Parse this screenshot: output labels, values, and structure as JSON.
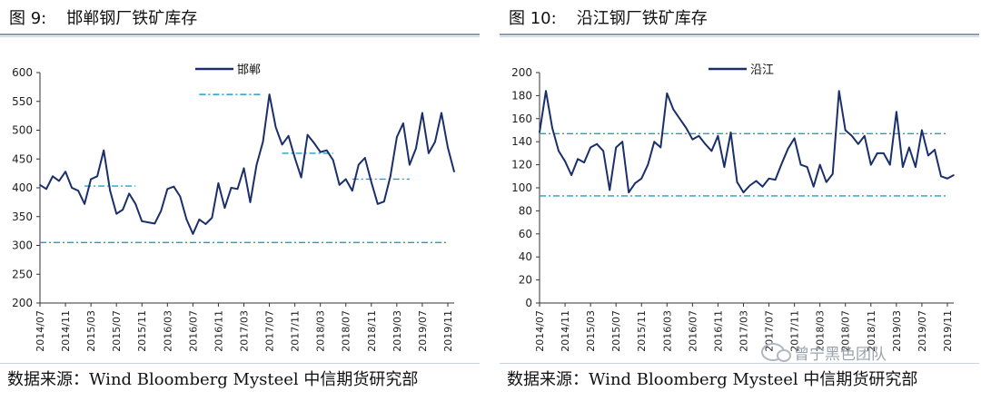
{
  "figures": [
    {
      "number": "图 9:",
      "title": "邯郸钢厂铁矿库存",
      "source": "数据来源：Wind Bloomberg Mysteel 中信期货研究部"
    },
    {
      "number": "图 10:",
      "title": "沿江钢厂铁矿库存",
      "source": "数据来源：Wind Bloomberg Mysteel 中信期货研究部"
    }
  ],
  "watermark": "曾宁黑色团队",
  "colors": {
    "line": "#1a2f6b",
    "reference": "#1aa3c9",
    "axis": "#333333"
  },
  "chart_data": [
    {
      "type": "line",
      "ylim": [
        200,
        600
      ],
      "yticks": [
        200,
        250,
        300,
        350,
        400,
        450,
        500,
        550,
        600
      ],
      "xticks": [
        "2014/07",
        "2014/11",
        "2015/03",
        "2015/07",
        "2015/11",
        "2016/03",
        "2016/07",
        "2016/11",
        "2017/03",
        "2017/07",
        "2017/11",
        "2018/03",
        "2018/07",
        "2018/11",
        "2019/03",
        "2019/07",
        "2019/11"
      ],
      "x_range": [
        "2014/07",
        "2019/12"
      ],
      "series": [
        {
          "name": "邯郸",
          "points": [
            [
              "2014/07",
              405
            ],
            [
              "2014/08",
              398
            ],
            [
              "2014/09",
              420
            ],
            [
              "2014/10",
              412
            ],
            [
              "2014/11",
              428
            ],
            [
              "2014/12",
              400
            ],
            [
              "2015/01",
              395
            ],
            [
              "2015/02",
              372
            ],
            [
              "2015/03",
              415
            ],
            [
              "2015/04",
              420
            ],
            [
              "2015/05",
              465
            ],
            [
              "2015/06",
              395
            ],
            [
              "2015/07",
              355
            ],
            [
              "2015/08",
              362
            ],
            [
              "2015/09",
              390
            ],
            [
              "2015/10",
              372
            ],
            [
              "2015/11",
              342
            ],
            [
              "2015/12",
              340
            ],
            [
              "2016/01",
              338
            ],
            [
              "2016/02",
              360
            ],
            [
              "2016/03",
              398
            ],
            [
              "2016/04",
              402
            ],
            [
              "2016/05",
              385
            ],
            [
              "2016/06",
              345
            ],
            [
              "2016/07",
              320
            ],
            [
              "2016/08",
              345
            ],
            [
              "2016/09",
              337
            ],
            [
              "2016/10",
              348
            ],
            [
              "2016/11",
              408
            ],
            [
              "2016/12",
              365
            ],
            [
              "2017/01",
              400
            ],
            [
              "2017/02",
              398
            ],
            [
              "2017/03",
              434
            ],
            [
              "2017/04",
              375
            ],
            [
              "2017/05",
              440
            ],
            [
              "2017/06",
              480
            ],
            [
              "2017/07",
              562
            ],
            [
              "2017/08",
              505
            ],
            [
              "2017/09",
              475
            ],
            [
              "2017/10",
              490
            ],
            [
              "2017/11",
              452
            ],
            [
              "2017/12",
              418
            ],
            [
              "2018/01",
              492
            ],
            [
              "2018/02",
              478
            ],
            [
              "2018/03",
              462
            ],
            [
              "2018/04",
              465
            ],
            [
              "2018/05",
              448
            ],
            [
              "2018/06",
              405
            ],
            [
              "2018/07",
              415
            ],
            [
              "2018/08",
              395
            ],
            [
              "2018/09",
              440
            ],
            [
              "2018/10",
              452
            ],
            [
              "2018/11",
              410
            ],
            [
              "2018/12",
              372
            ],
            [
              "2019/01",
              376
            ],
            [
              "2019/02",
              420
            ],
            [
              "2019/03",
              488
            ],
            [
              "2019/04",
              512
            ],
            [
              "2019/05",
              440
            ],
            [
              "2019/06",
              468
            ],
            [
              "2019/07",
              530
            ],
            [
              "2019/08",
              460
            ],
            [
              "2019/09",
              480
            ],
            [
              "2019/10",
              530
            ],
            [
              "2019/11",
              470
            ],
            [
              "2019/12",
              428
            ]
          ],
          "note": ""
        }
      ],
      "reference_lines": [
        {
          "y": 562,
          "x_start": "2016/08",
          "x_end": "2017/06"
        },
        {
          "y": 403,
          "x_start": "2015/02",
          "x_end": "2015/10"
        },
        {
          "y": 460,
          "x_start": "2017/09",
          "x_end": "2018/05"
        },
        {
          "y": 415,
          "x_start": "2018/08",
          "x_end": "2019/05"
        },
        {
          "y": 305,
          "x_start": "2014/07",
          "x_end": "2019/11"
        }
      ]
    },
    {
      "type": "line",
      "ylim": [
        0,
        200
      ],
      "yticks": [
        0,
        20,
        40,
        60,
        80,
        100,
        120,
        140,
        160,
        180,
        200
      ],
      "xticks": [
        "2014/07",
        "2014/11",
        "2015/03",
        "2015/07",
        "2015/11",
        "2016/03",
        "2016/07",
        "2016/11",
        "2017/03",
        "2017/07",
        "2017/11",
        "2018/03",
        "2018/07",
        "2018/11",
        "2019/03",
        "2019/07",
        "2019/11"
      ],
      "x_range": [
        "2014/07",
        "2019/12"
      ],
      "series": [
        {
          "name": "沿江",
          "points": [
            [
              "2014/07",
              148
            ],
            [
              "2014/08",
              184
            ],
            [
              "2014/09",
              152
            ],
            [
              "2014/10",
              132
            ],
            [
              "2014/11",
              123
            ],
            [
              "2014/12",
              111
            ],
            [
              "2015/01",
              125
            ],
            [
              "2015/02",
              122
            ],
            [
              "2015/03",
              135
            ],
            [
              "2015/04",
              138
            ],
            [
              "2015/05",
              132
            ],
            [
              "2015/06",
              98
            ],
            [
              "2015/07",
              135
            ],
            [
              "2015/08",
              140
            ],
            [
              "2015/09",
              96
            ],
            [
              "2015/10",
              104
            ],
            [
              "2015/11",
              108
            ],
            [
              "2015/12",
              120
            ],
            [
              "2016/01",
              140
            ],
            [
              "2016/02",
              135
            ],
            [
              "2016/03",
              182
            ],
            [
              "2016/04",
              168
            ],
            [
              "2016/05",
              160
            ],
            [
              "2016/06",
              152
            ],
            [
              "2016/07",
              142
            ],
            [
              "2016/08",
              145
            ],
            [
              "2016/09",
              138
            ],
            [
              "2016/10",
              132
            ],
            [
              "2016/11",
              145
            ],
            [
              "2016/12",
              118
            ],
            [
              "2017/01",
              148
            ],
            [
              "2017/02",
              105
            ],
            [
              "2017/03",
              96
            ],
            [
              "2017/04",
              102
            ],
            [
              "2017/05",
              106
            ],
            [
              "2017/06",
              101
            ],
            [
              "2017/07",
              108
            ],
            [
              "2017/08",
              107
            ],
            [
              "2017/09",
              121
            ],
            [
              "2017/10",
              134
            ],
            [
              "2017/11",
              143
            ],
            [
              "2017/12",
              120
            ],
            [
              "2018/01",
              118
            ],
            [
              "2018/02",
              101
            ],
            [
              "2018/03",
              120
            ],
            [
              "2018/04",
              105
            ],
            [
              "2018/05",
              112
            ],
            [
              "2018/06",
              184
            ],
            [
              "2018/07",
              150
            ],
            [
              "2018/08",
              145
            ],
            [
              "2018/09",
              138
            ],
            [
              "2018/10",
              145
            ],
            [
              "2018/11",
              120
            ],
            [
              "2018/12",
              130
            ],
            [
              "2019/01",
              130
            ],
            [
              "2019/02",
              120
            ],
            [
              "2019/03",
              166
            ],
            [
              "2019/04",
              118
            ],
            [
              "2019/05",
              135
            ],
            [
              "2019/06",
              118
            ],
            [
              "2019/07",
              150
            ],
            [
              "2019/08",
              128
            ],
            [
              "2019/09",
              133
            ],
            [
              "2019/10",
              110
            ],
            [
              "2019/11",
              108
            ],
            [
              "2019/12",
              111
            ]
          ],
          "note": ""
        }
      ],
      "reference_lines": [
        {
          "y": 147,
          "x_start": "2014/07",
          "x_end": "2019/11"
        },
        {
          "y": 93,
          "x_start": "2014/07",
          "x_end": "2019/11"
        }
      ]
    }
  ]
}
